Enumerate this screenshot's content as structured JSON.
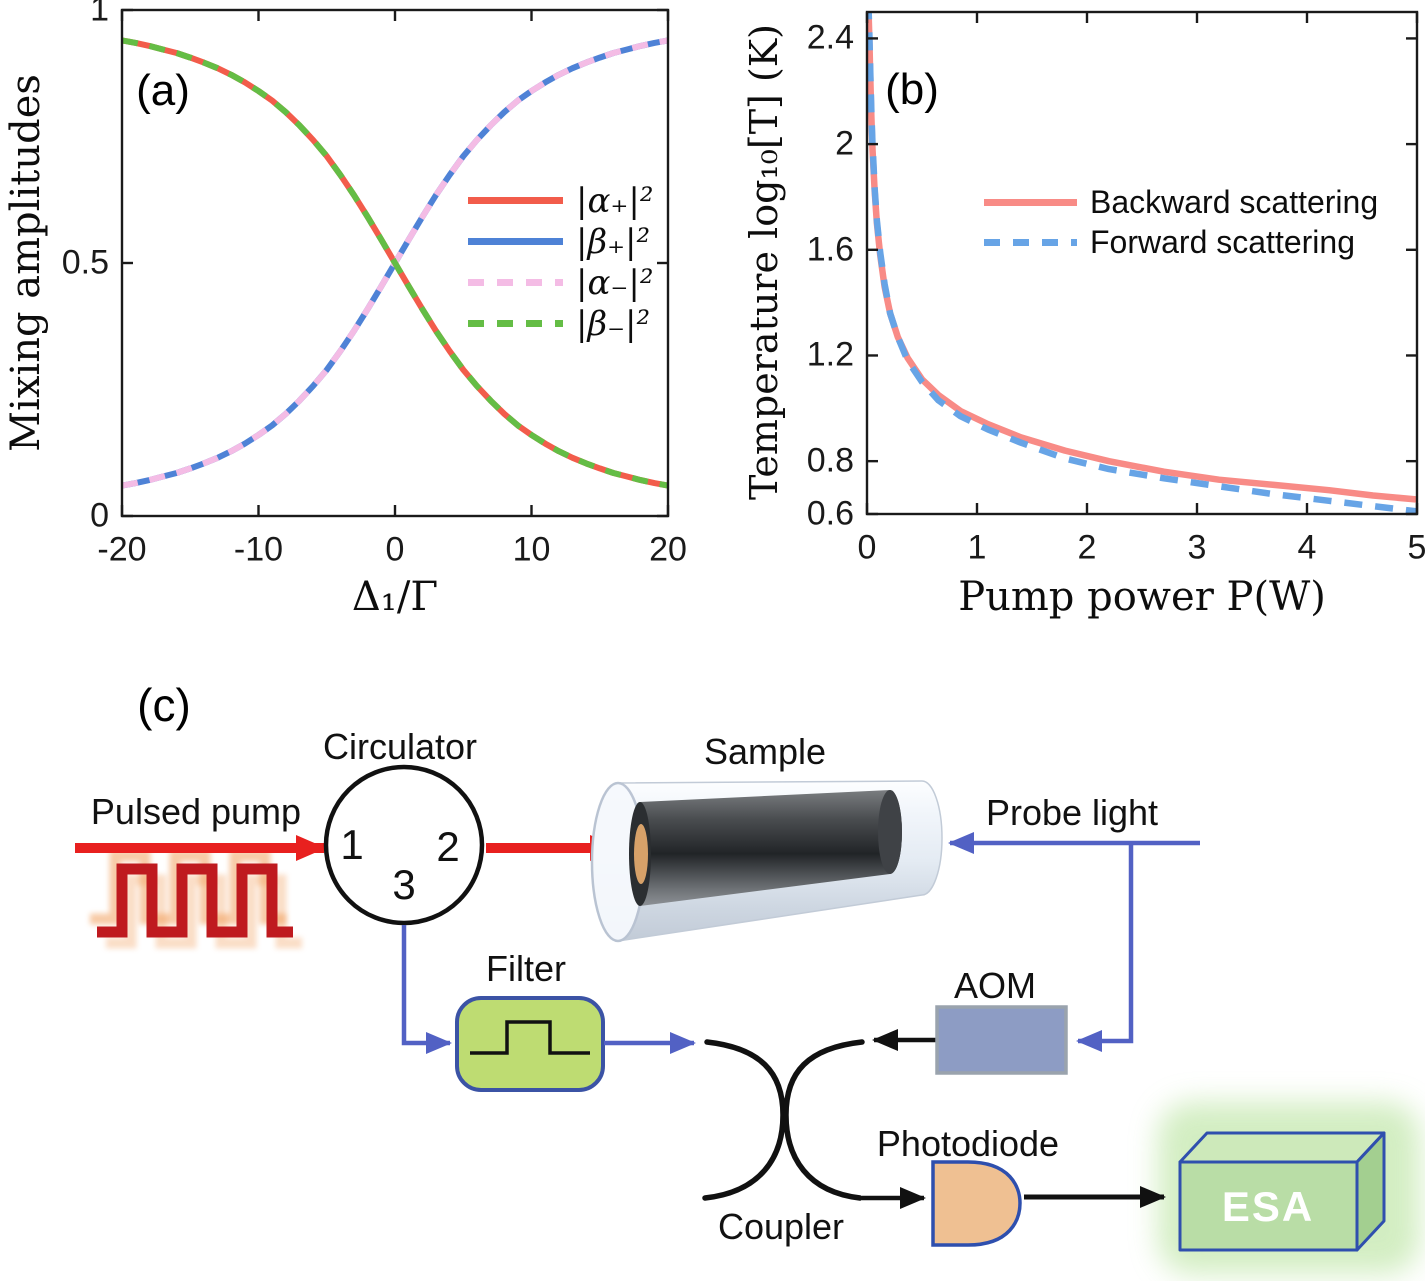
{
  "chart_data": [
    {
      "type": "line",
      "panel": "a",
      "panel_label": "(a)",
      "xlabel": "Δ₁/Γ",
      "ylabel": "Mixing amplitudes",
      "xlim": [
        -20,
        20
      ],
      "ylim": [
        0,
        1
      ],
      "xtick_values": [
        -20,
        -10,
        0,
        10,
        20
      ],
      "xtick_labels": [
        "-20",
        "-10",
        "0",
        "10",
        "20"
      ],
      "ytick_values": [
        0,
        0.5,
        1
      ],
      "ytick_labels": [
        "0",
        "0.5",
        "1"
      ],
      "grid": false,
      "legend_position": "middle-right",
      "x": [
        -20,
        -19,
        -18,
        -17,
        -16,
        -15,
        -14,
        -13,
        -12,
        -11,
        -10,
        -9,
        -8,
        -7,
        -6,
        -5,
        -4,
        -3,
        -2,
        -1,
        0,
        1,
        2,
        3,
        4,
        5,
        6,
        7,
        8,
        9,
        10,
        11,
        12,
        13,
        14,
        15,
        16,
        17,
        18,
        19,
        20
      ],
      "series": [
        {
          "name": "|α₊|²",
          "color": "#f25c4b",
          "style": "solid",
          "values": [
            0.94,
            0.935,
            0.929,
            0.922,
            0.915,
            0.906,
            0.896,
            0.885,
            0.872,
            0.857,
            0.84,
            0.821,
            0.798,
            0.772,
            0.743,
            0.711,
            0.674,
            0.634,
            0.591,
            0.546,
            0.5,
            0.454,
            0.409,
            0.366,
            0.326,
            0.289,
            0.257,
            0.228,
            0.202,
            0.179,
            0.16,
            0.143,
            0.128,
            0.115,
            0.104,
            0.094,
            0.085,
            0.078,
            0.071,
            0.065,
            0.06
          ]
        },
        {
          "name": "|β₊|²",
          "color": "#4e82d6",
          "style": "solid",
          "values": [
            0.06,
            0.065,
            0.071,
            0.078,
            0.085,
            0.094,
            0.104,
            0.115,
            0.128,
            0.143,
            0.16,
            0.179,
            0.202,
            0.228,
            0.257,
            0.289,
            0.326,
            0.366,
            0.409,
            0.454,
            0.5,
            0.546,
            0.591,
            0.634,
            0.674,
            0.711,
            0.743,
            0.772,
            0.798,
            0.821,
            0.84,
            0.857,
            0.872,
            0.885,
            0.896,
            0.906,
            0.915,
            0.922,
            0.929,
            0.935,
            0.94
          ]
        },
        {
          "name": "|α₋|²",
          "color": "#f4bce5",
          "style": "dashed",
          "values": [
            0.06,
            0.065,
            0.071,
            0.078,
            0.085,
            0.094,
            0.104,
            0.115,
            0.128,
            0.143,
            0.16,
            0.179,
            0.202,
            0.228,
            0.257,
            0.289,
            0.326,
            0.366,
            0.409,
            0.454,
            0.5,
            0.546,
            0.591,
            0.634,
            0.674,
            0.711,
            0.743,
            0.772,
            0.798,
            0.821,
            0.84,
            0.857,
            0.872,
            0.885,
            0.896,
            0.906,
            0.915,
            0.922,
            0.929,
            0.935,
            0.94
          ]
        },
        {
          "name": "|β₋|²",
          "color": "#64bd45",
          "style": "dashed",
          "values": [
            0.94,
            0.935,
            0.929,
            0.922,
            0.915,
            0.906,
            0.896,
            0.885,
            0.872,
            0.857,
            0.84,
            0.821,
            0.798,
            0.772,
            0.743,
            0.711,
            0.674,
            0.634,
            0.591,
            0.546,
            0.5,
            0.454,
            0.409,
            0.366,
            0.326,
            0.289,
            0.257,
            0.228,
            0.202,
            0.179,
            0.16,
            0.143,
            0.128,
            0.115,
            0.104,
            0.094,
            0.085,
            0.078,
            0.071,
            0.065,
            0.06
          ]
        }
      ]
    },
    {
      "type": "line",
      "panel": "b",
      "panel_label": "(b)",
      "xlabel": "Pump power P(W)",
      "ylabel": "Temperature log₁₀[T] (K)",
      "xlim": [
        0,
        5
      ],
      "ylim": [
        0.6,
        2.5
      ],
      "xtick_values": [
        0,
        1,
        2,
        3,
        4,
        5
      ],
      "xtick_labels": [
        "0",
        "1",
        "2",
        "3",
        "4",
        "5"
      ],
      "ytick_values": [
        0.6,
        0.8,
        1.2,
        1.6,
        2,
        2.4
      ],
      "ytick_labels": [
        "0.6",
        "0.8",
        "1.2",
        "1.6",
        "2",
        "2.4"
      ],
      "grid": false,
      "legend_position": "upper-right",
      "series": [
        {
          "name": "Backward scattering",
          "color": "#f88b86",
          "style": "solid",
          "points": [
            [
              0.013,
              2.52
            ],
            [
              0.02,
              2.42
            ],
            [
              0.025,
              2.33
            ],
            [
              0.03,
              2.25
            ],
            [
              0.04,
              2.1
            ],
            [
              0.05,
              1.98
            ],
            [
              0.07,
              1.82
            ],
            [
              0.09,
              1.7
            ],
            [
              0.12,
              1.58
            ],
            [
              0.16,
              1.46
            ],
            [
              0.21,
              1.36
            ],
            [
              0.28,
              1.27
            ],
            [
              0.37,
              1.19
            ],
            [
              0.5,
              1.11
            ],
            [
              0.65,
              1.05
            ],
            [
              0.85,
              0.99
            ],
            [
              1.1,
              0.94
            ],
            [
              1.4,
              0.89
            ],
            [
              1.8,
              0.84
            ],
            [
              2.2,
              0.8
            ],
            [
              2.7,
              0.76
            ],
            [
              3.2,
              0.73
            ],
            [
              3.7,
              0.71
            ],
            [
              4.2,
              0.69
            ],
            [
              4.6,
              0.67
            ],
            [
              5.0,
              0.655
            ]
          ]
        },
        {
          "name": "Forward scattering",
          "color": "#67a4e6",
          "style": "dashed",
          "points": [
            [
              0.012,
              2.54
            ],
            [
              0.02,
              2.44
            ],
            [
              0.025,
              2.35
            ],
            [
              0.03,
              2.27
            ],
            [
              0.04,
              2.12
            ],
            [
              0.05,
              2.0
            ],
            [
              0.07,
              1.83
            ],
            [
              0.09,
              1.71
            ],
            [
              0.12,
              1.59
            ],
            [
              0.16,
              1.47
            ],
            [
              0.21,
              1.36
            ],
            [
              0.28,
              1.27
            ],
            [
              0.37,
              1.18
            ],
            [
              0.5,
              1.1
            ],
            [
              0.65,
              1.03
            ],
            [
              0.85,
              0.97
            ],
            [
              1.1,
              0.92
            ],
            [
              1.4,
              0.87
            ],
            [
              1.8,
              0.81
            ],
            [
              2.2,
              0.77
            ],
            [
              2.7,
              0.735
            ],
            [
              3.2,
              0.705
            ],
            [
              3.7,
              0.675
            ],
            [
              4.2,
              0.65
            ],
            [
              4.6,
              0.63
            ],
            [
              5.0,
              0.61
            ]
          ]
        }
      ]
    }
  ],
  "diagram": {
    "panel_label": "(c)",
    "labels": {
      "pulsed_pump": "Pulsed pump",
      "circulator": "Circulator",
      "port1": "1",
      "port2": "2",
      "port3": "3",
      "sample": "Sample",
      "probe_light": "Probe light",
      "filter": "Filter",
      "aom": "AOM",
      "coupler": "Coupler",
      "photodiode": "Photodiode",
      "esa": "ESA"
    },
    "colors": {
      "accent_red": "#e8201f",
      "schem_blue": "#5261c4",
      "line_black": "#111111",
      "filter_fill": "#bedc72",
      "filter_border": "#3b53a5",
      "aom_fill": "#8d9cc4",
      "aom_border": "#9aa3ad",
      "pd_fill": "#efc092",
      "pd_border": "#2e4fae",
      "esa_front": "#b9dda6",
      "esa_top": "#cde9ba",
      "esa_side": "#a3cf90",
      "esa_border": "#2f4fae",
      "esa_glow": "#c4e8ae",
      "pulse_dark": "#bf1a1f",
      "pulse_echo": "#f2a05e"
    }
  }
}
